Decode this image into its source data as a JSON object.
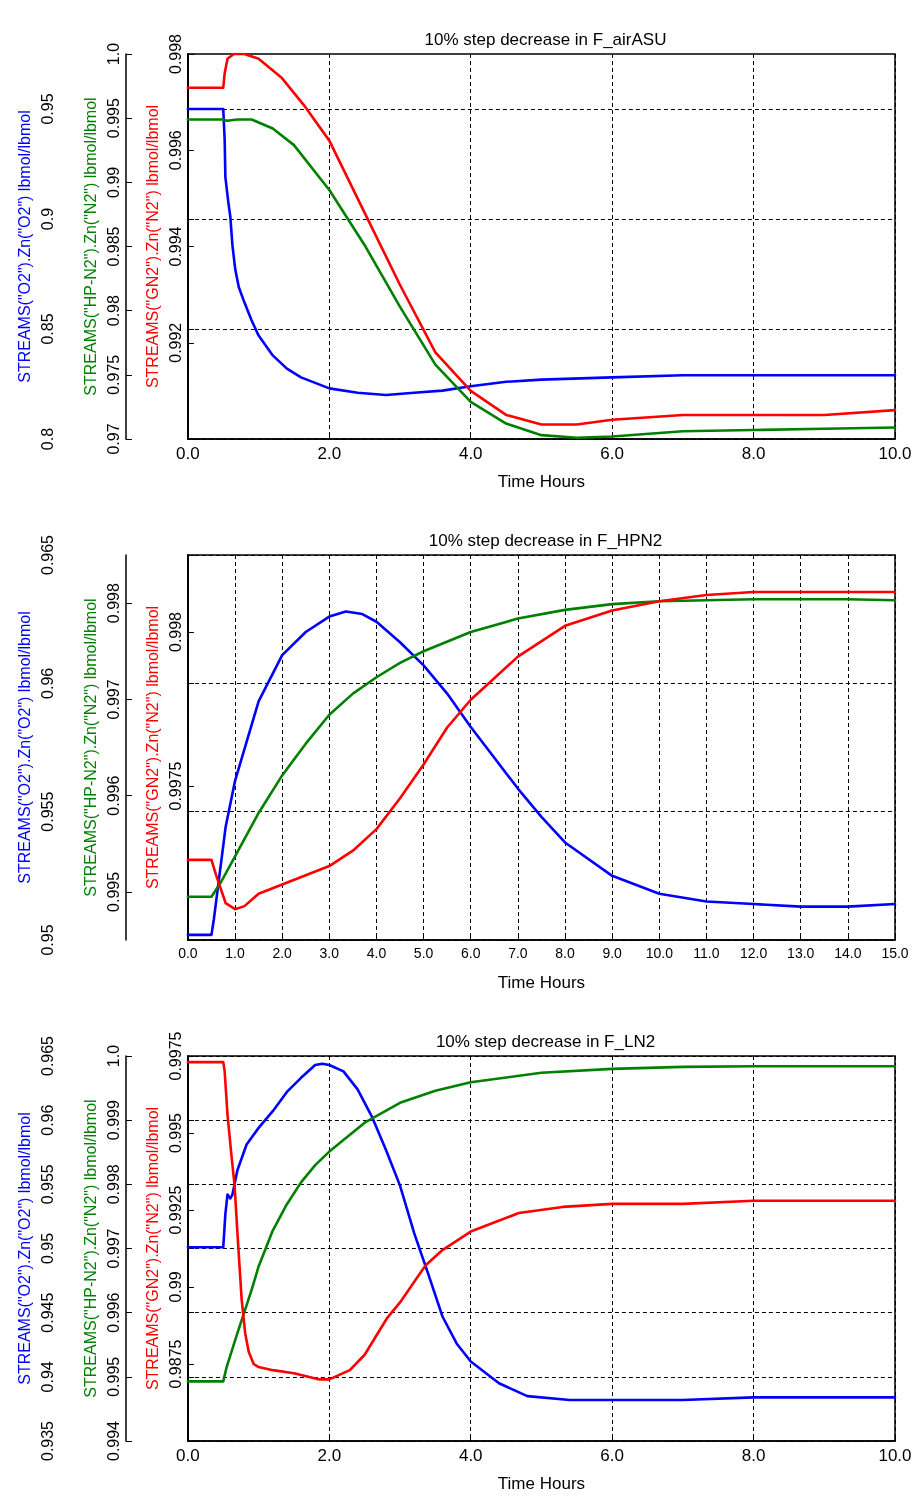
{
  "chart_data": [
    {
      "type": "line",
      "title": "10% step decrease in F_airASU",
      "xlabel": "Time Hours",
      "ylabel": "STREAMS(\"O2\").Zn(\"O2\") lbmol/lbmol",
      "y2label": "STREAMS(\"HP-N2\").Zn(\"N2\") lbmol/lbmol",
      "y3label": "STREAMS(\"GN2\").Zn(\"N2\") lbmol/lbmol",
      "xlim": [
        0,
        10
      ],
      "xticks": [
        {
          "value": 0,
          "label": "0.0"
        },
        {
          "value": 2,
          "label": "2.0"
        },
        {
          "value": 4,
          "label": "4.0"
        },
        {
          "value": 6,
          "label": "6.0"
        },
        {
          "value": 8,
          "label": "8.0"
        },
        {
          "value": 10,
          "label": "10.0"
        }
      ],
      "ylim": [
        0.8,
        0.975
      ],
      "yticks": [
        0.8,
        0.85,
        0.9,
        0.95
      ],
      "y2lim": [
        0.97,
        1.0
      ],
      "y2ticks": [
        0.97,
        0.975,
        0.98,
        0.985,
        0.99,
        0.995,
        {
          "value": 1.0,
          "label": "1.0"
        }
      ],
      "y3lim": [
        0.99,
        0.998
      ],
      "y3ticks": [
        0.992,
        0.994,
        0.996,
        0.998
      ],
      "grid": true,
      "line_style": "solid",
      "series": [
        {
          "color": "#0000ff",
          "axis": "y",
          "x": [
            0,
            0.5,
            0.52,
            0.53,
            0.57,
            0.6,
            0.63,
            0.67,
            0.72,
            0.8,
            0.9,
            1.0,
            1.2,
            1.4,
            1.6,
            2.0,
            2.4,
            2.8,
            3.2,
            3.6,
            4.0,
            4.5,
            5.0,
            6.0,
            7.0,
            8.0,
            9.0,
            10.0
          ],
          "values": [
            0.95,
            0.95,
            0.936,
            0.919,
            0.908,
            0.901,
            0.888,
            0.877,
            0.869,
            0.862,
            0.854,
            0.847,
            0.838,
            0.832,
            0.828,
            0.823,
            0.821,
            0.82,
            0.821,
            0.822,
            0.824,
            0.826,
            0.827,
            0.828,
            0.829,
            0.829,
            0.829,
            0.829
          ]
        },
        {
          "color": "#008000",
          "axis": "y2",
          "x": [
            0,
            0.5,
            0.55,
            0.7,
            0.9,
            1.2,
            1.5,
            2.0,
            2.5,
            3.0,
            3.5,
            4.0,
            4.5,
            5.0,
            5.5,
            6.0,
            7.0,
            8.0,
            9.0,
            10.0
          ],
          "values": [
            0.9949,
            0.9949,
            0.9948,
            0.9949,
            0.9949,
            0.9942,
            0.9929,
            0.9894,
            0.9851,
            0.9803,
            0.9758,
            0.9729,
            0.9712,
            0.9703,
            0.9701,
            0.9702,
            0.9706,
            0.9707,
            0.9708,
            0.9709
          ]
        },
        {
          "color": "#ff0000",
          "axis": "y3",
          "x": [
            0,
            0.5,
            0.52,
            0.56,
            0.65,
            0.8,
            1.0,
            1.33,
            1.66,
            2.0,
            2.5,
            3.0,
            3.5,
            4.0,
            4.5,
            5.0,
            5.5,
            6.0,
            7.0,
            8.0,
            9.0,
            10.0
          ],
          "values": [
            0.9973,
            0.9973,
            0.9976,
            0.9979,
            0.998,
            0.998,
            0.9979,
            0.9975,
            0.9969,
            0.9962,
            0.9947,
            0.9932,
            0.9918,
            0.991,
            0.9905,
            0.9903,
            0.9903,
            0.9904,
            0.9905,
            0.9905,
            0.9905,
            0.9906
          ]
        }
      ]
    },
    {
      "type": "line",
      "title": "10% step decrease in F_HPN2",
      "xlabel": "Time Hours",
      "ylabel": "STREAMS(\"O2\").Zn(\"O2\") lbmol/lbmol",
      "y2label": "STREAMS(\"HP-N2\").Zn(\"N2\") lbmol/lbmol",
      "y3label": "STREAMS(\"GN2\").Zn(\"N2\") lbmol/lbmol",
      "xlim": [
        0,
        15
      ],
      "xticks": [
        {
          "value": 0,
          "label": "0.0"
        },
        {
          "value": 1,
          "label": "1.0"
        },
        {
          "value": 2,
          "label": "2.0"
        },
        {
          "value": 3,
          "label": "3.0"
        },
        {
          "value": 4,
          "label": "4.0"
        },
        {
          "value": 5,
          "label": "5.0"
        },
        {
          "value": 6,
          "label": "6.0"
        },
        {
          "value": 7,
          "label": "7.0"
        },
        {
          "value": 8,
          "label": "8.0"
        },
        {
          "value": 9,
          "label": "9.0"
        },
        {
          "value": 10,
          "label": "10.0"
        },
        {
          "value": 11,
          "label": "11.0"
        },
        {
          "value": 12,
          "label": "12.0"
        },
        {
          "value": 13,
          "label": "13.0"
        },
        {
          "value": 14,
          "label": "14.0"
        },
        {
          "value": 15,
          "label": "15.0"
        }
      ],
      "ylim": [
        0.95,
        0.965
      ],
      "yticks": [
        0.95,
        0.955,
        0.96,
        0.965
      ],
      "y2lim": [
        0.9945,
        0.9985
      ],
      "y2ticks": [
        0.995,
        0.996,
        0.997,
        0.998
      ],
      "y3lim": [
        0.997,
        0.99825
      ],
      "y3ticks": [
        0.9975,
        0.998
      ],
      "grid": true,
      "line_style": "solid",
      "series": [
        {
          "color": "#0000ff",
          "axis": "y",
          "x": [
            0,
            0.5,
            0.55,
            0.8,
            1.0,
            1.5,
            2.0,
            2.5,
            3.0,
            3.35,
            3.7,
            4.0,
            4.5,
            5.0,
            5.5,
            6.0,
            6.5,
            7.0,
            7.5,
            8.0,
            9.0,
            10.0,
            11.0,
            12.0,
            13.0,
            14.0,
            15.0
          ],
          "values": [
            0.9502,
            0.9502,
            0.9508,
            0.9544,
            0.9562,
            0.9593,
            0.9611,
            0.962,
            0.9626,
            0.9628,
            0.9627,
            0.9624,
            0.9616,
            0.9607,
            0.9596,
            0.9583,
            0.9571,
            0.9559,
            0.9548,
            0.9538,
            0.9525,
            0.9518,
            0.9515,
            0.9514,
            0.9513,
            0.9513,
            0.9514
          ]
        },
        {
          "color": "#008000",
          "axis": "y2",
          "x": [
            0,
            0.5,
            0.7,
            1.0,
            1.5,
            2.0,
            2.5,
            3.0,
            3.5,
            4.0,
            4.5,
            5.0,
            6.0,
            7.0,
            8.0,
            9.0,
            10.0,
            11.0,
            12.0,
            13.0,
            14.0,
            15.0
          ],
          "values": [
            0.99495,
            0.99495,
            0.9951,
            0.99537,
            0.99582,
            0.99621,
            0.99654,
            0.99684,
            0.99706,
            0.99723,
            0.99738,
            0.9975,
            0.9977,
            0.99784,
            0.99793,
            0.99799,
            0.99802,
            0.99803,
            0.99804,
            0.99804,
            0.99804,
            0.99803
          ]
        },
        {
          "color": "#ff0000",
          "axis": "y3",
          "x": [
            0,
            0.5,
            0.6,
            0.8,
            1.0,
            1.2,
            1.5,
            2.0,
            2.5,
            3.0,
            3.5,
            4.0,
            4.5,
            5.0,
            5.5,
            6.0,
            6.5,
            7.0,
            8.0,
            9.0,
            10.0,
            11.0,
            12.0,
            13.0,
            14.0,
            15.0
          ],
          "values": [
            0.99726,
            0.99726,
            0.99721,
            0.99712,
            0.9971,
            0.99711,
            0.99715,
            0.99718,
            0.99721,
            0.99724,
            0.99729,
            0.99736,
            0.99746,
            0.99757,
            0.99769,
            0.99778,
            0.99785,
            0.99792,
            0.99802,
            0.99807,
            0.9981,
            0.99812,
            0.99813,
            0.99813,
            0.99813,
            0.99813
          ]
        }
      ]
    },
    {
      "type": "line",
      "title": "10% step decrease in F_LN2",
      "xlabel": "Time Hours",
      "ylabel": "STREAMS(\"O2\").Zn(\"O2\") lbmol/lbmol",
      "y2label": "STREAMS(\"HP-N2\").Zn(\"N2\") lbmol/lbmol",
      "y3label": "STREAMS(\"GN2\").Zn(\"N2\") lbmol/lbmol",
      "xlim": [
        0,
        10
      ],
      "xticks": [
        {
          "value": 0,
          "label": "0.0"
        },
        {
          "value": 2,
          "label": "2.0"
        },
        {
          "value": 4,
          "label": "4.0"
        },
        {
          "value": 6,
          "label": "6.0"
        },
        {
          "value": 8,
          "label": "8.0"
        },
        {
          "value": 10,
          "label": "10.0"
        }
      ],
      "ylim": [
        0.935,
        0.965
      ],
      "yticks": [
        0.935,
        0.94,
        0.945,
        0.95,
        0.955,
        0.96,
        0.965
      ],
      "y2lim": [
        0.994,
        1.0
      ],
      "y2ticks": [
        0.994,
        0.995,
        0.996,
        0.997,
        0.998,
        0.999,
        {
          "value": 1.0,
          "label": "1.0"
        }
      ],
      "y3lim": [
        0.985,
        0.9975
      ],
      "y3ticks": [
        0.9875,
        0.99,
        0.9925,
        0.995,
        0.9975
      ],
      "grid": true,
      "line_style": "solid",
      "series": [
        {
          "color": "#0000ff",
          "axis": "y",
          "x": [
            0,
            0.5,
            0.53,
            0.56,
            0.6,
            0.63,
            0.7,
            0.83,
            1.0,
            1.2,
            1.4,
            1.6,
            1.8,
            1.9,
            2.0,
            2.2,
            2.4,
            2.6,
            2.8,
            3.0,
            3.2,
            3.4,
            3.6,
            3.8,
            4.0,
            4.4,
            4.8,
            5.4,
            6.0,
            7.0,
            8.0,
            9.0,
            10.0
          ],
          "values": [
            0.9501,
            0.9501,
            0.9527,
            0.9542,
            0.9539,
            0.9542,
            0.9561,
            0.9581,
            0.9594,
            0.9607,
            0.9622,
            0.9633,
            0.9643,
            0.9644,
            0.9643,
            0.9638,
            0.9624,
            0.9603,
            0.9577,
            0.9549,
            0.9512,
            0.948,
            0.9447,
            0.9426,
            0.9412,
            0.9395,
            0.9385,
            0.9382,
            0.9382,
            0.9382,
            0.9384,
            0.9384,
            0.9384
          ]
        },
        {
          "color": "#008000",
          "axis": "y2",
          "x": [
            0,
            0.5,
            0.55,
            0.7,
            0.9,
            1.0,
            1.2,
            1.4,
            1.6,
            1.8,
            2.0,
            2.5,
            3.0,
            3.5,
            4.0,
            5.0,
            6.0,
            7.0,
            8.0,
            9.0,
            10.0
          ],
          "values": [
            0.99493,
            0.99493,
            0.99516,
            0.99568,
            0.99635,
            0.99672,
            0.99728,
            0.99769,
            0.99803,
            0.9983,
            0.99851,
            0.99896,
            0.99927,
            0.99946,
            0.99959,
            0.99974,
            0.9998,
            0.99983,
            0.99984,
            0.99984,
            0.99984
          ]
        },
        {
          "color": "#ff0000",
          "axis": "y3",
          "x": [
            0,
            0.5,
            0.52,
            0.56,
            0.61,
            0.66,
            0.71,
            0.76,
            0.81,
            0.86,
            0.93,
            1.0,
            1.2,
            1.5,
            1.86,
            2.0,
            2.29,
            2.5,
            2.82,
            3.0,
            3.36,
            3.6,
            4.0,
            4.68,
            5.3,
            6.0,
            7.0,
            8.0,
            10.0
          ],
          "values": [
            0.9973,
            0.9973,
            0.997,
            0.9956,
            0.9944,
            0.9933,
            0.9914,
            0.9896,
            0.9885,
            0.9879,
            0.9875,
            0.9874,
            0.9873,
            0.9872,
            0.987,
            0.987,
            0.9873,
            0.9878,
            0.989,
            0.9895,
            0.9907,
            0.9912,
            0.9918,
            0.9924,
            0.9926,
            0.9927,
            0.9927,
            0.9928,
            0.9928
          ]
        }
      ]
    }
  ]
}
